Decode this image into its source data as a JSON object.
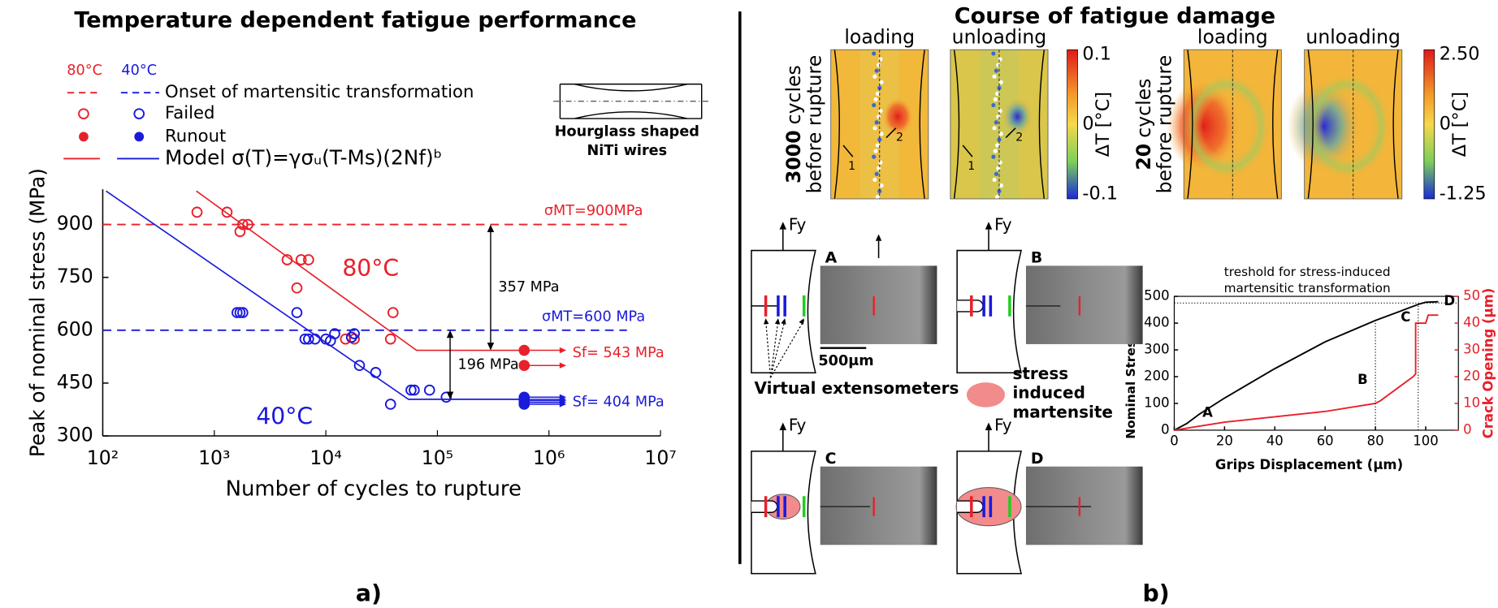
{
  "panel_a": {
    "label": "a)"
  },
  "hourglass_caption": [
    "Hourglass shaped",
    "NiTi wires"
  ],
  "chart_data": [
    {
      "type": "scatter",
      "title": "Temperature dependent fatigue performance",
      "xlabel": "Number of cycles to rupture",
      "ylabel": "Peak of nominal stress (MPa)",
      "xscale": "log",
      "xlim": [
        100,
        10000000
      ],
      "xticks": [
        {
          "value": 100,
          "label": "10²"
        },
        {
          "value": 1000,
          "label": "10³"
        },
        {
          "value": 10000,
          "label": "10⁴"
        },
        {
          "value": 100000,
          "label": "10⁵"
        },
        {
          "value": 1000000,
          "label": "10⁶"
        },
        {
          "value": 10000000,
          "label": "10⁷"
        }
      ],
      "ylim": [
        300,
        1000
      ],
      "yticks": [
        300,
        450,
        600,
        750,
        900
      ],
      "legend": {
        "columns": [
          "80°C",
          "40°C"
        ],
        "rows": [
          "Onset of martensitic transformation",
          "Failed",
          "Runout",
          "Model σ(T)=γσᵤ(T-Ms)(2Nf)ᵇ"
        ]
      },
      "series": [
        {
          "color": "#e8202a",
          "marker": "open",
          "x": [
            700,
            1300,
            1800,
            2000,
            1700,
            4500,
            6000,
            7000,
            5500,
            15000,
            17000,
            18000,
            38000,
            40000
          ],
          "values": [
            935,
            935,
            900,
            900,
            880,
            800,
            800,
            800,
            720,
            575,
            580,
            575,
            575,
            650
          ]
        },
        {
          "color": "#1a1adb",
          "marker": "open",
          "x": [
            1600,
            1700,
            1800,
            5500,
            6500,
            7000,
            8000,
            10000,
            11000,
            12000,
            17000,
            18000,
            20000,
            28000,
            38000,
            58000,
            62000,
            85000,
            120000
          ],
          "values": [
            650,
            650,
            650,
            650,
            575,
            575,
            575,
            575,
            570,
            590,
            580,
            590,
            500,
            480,
            390,
            430,
            430,
            430,
            410
          ]
        },
        {
          "color": "#e8202a",
          "marker": "filled",
          "x": [
            600000,
            600000
          ],
          "values": [
            543,
            500
          ]
        },
        {
          "color": "#1a1adb",
          "marker": "filled",
          "x": [
            600000,
            600000,
            600000,
            600000,
            600000
          ],
          "values": [
            410,
            404,
            400,
            395,
            390
          ]
        },
        {
          "color": "#e8202a",
          "marker": "line",
          "x": [
            690,
            65000,
            600000
          ],
          "values": [
            995,
            543,
            543
          ]
        },
        {
          "color": "#1a1adb",
          "marker": "line",
          "x": [
            107,
            55000,
            600000
          ],
          "values": [
            995,
            404,
            404
          ]
        }
      ],
      "hlines": [
        {
          "value": 900,
          "color": "#e8202a",
          "label": "σMT=900MPa"
        },
        {
          "value": 600,
          "color": "#1a1adb",
          "label": "σMT=600 MPa"
        }
      ],
      "spans": [
        {
          "x": 300000,
          "from": 543,
          "to": 900,
          "label": "357 MPa"
        },
        {
          "x": 130000,
          "from": 404,
          "to": 600,
          "label": "196 MPa"
        }
      ],
      "curve_labels": [
        {
          "text": "80°C",
          "color": "#e8202a"
        },
        {
          "text": "40°C",
          "color": "#1a1adb"
        }
      ],
      "limits": [
        {
          "text": "Sf= 543 MPa",
          "value": 543,
          "color": "#e8202a"
        },
        {
          "text": "Sf=  404 MPa",
          "value": 404,
          "color": "#1a1adb"
        }
      ]
    },
    {
      "type": "line",
      "xlabel": "Grips Displacement  (μm)",
      "ylabel": "Nominal Stress (MPa)",
      "y2label": "Crack Opening (μm)",
      "xlim": [
        0,
        113
      ],
      "xticks": [
        0,
        20,
        40,
        60,
        80,
        100
      ],
      "ylim": [
        0,
        500
      ],
      "yticks": [
        0,
        100,
        200,
        300,
        400,
        500
      ],
      "y2lim": [
        0,
        50
      ],
      "y2ticks": [
        0,
        10,
        20,
        30,
        40,
        50
      ],
      "series": [
        {
          "color": "#000000",
          "x": [
            0,
            5,
            10,
            20,
            40,
            60,
            80,
            90,
            97,
            100,
            105
          ],
          "values": [
            0,
            25,
            60,
            120,
            230,
            330,
            410,
            445,
            470,
            478,
            480
          ]
        },
        {
          "color": "#e8202a",
          "axis": "y2",
          "x": [
            0,
            20,
            40,
            60,
            80,
            82,
            95,
            96,
            96,
            100,
            101,
            105
          ],
          "values": [
            0,
            3,
            5,
            7,
            10,
            11,
            20,
            21,
            40,
            40,
            43,
            43
          ]
        }
      ],
      "threshold": {
        "value": 475,
        "text": [
          "treshold for stress-induced",
          "martensitic transformation"
        ]
      },
      "points": {
        "labels": [
          "A",
          "B",
          "C",
          "D"
        ],
        "x": [
          10,
          80,
          97,
          105
        ]
      }
    }
  ],
  "panel_b": {
    "label": "b)",
    "title": "Course of fatigue damage",
    "thermal_columns": [
      "loading",
      "unloading",
      "loading",
      "unloading"
    ],
    "thermal_rows": [
      {
        "count": "3000",
        "unit": "cycles",
        "line2": "before rupture"
      },
      {
        "count": "20",
        "unit": "cycles",
        "line2": "before rupture"
      }
    ],
    "colorbars": [
      {
        "label": "ΔT [°C]",
        "ticks": [
          "0.1",
          "0",
          "-0.1"
        ]
      },
      {
        "label": "ΔT [°C]",
        "ticks": [
          "2.50",
          "0",
          "-1.25"
        ]
      }
    ],
    "crack_marks": [
      "1",
      "2",
      "1",
      "2"
    ],
    "force": "Fy",
    "steps": [
      "A",
      "B",
      "C",
      "D"
    ],
    "scale_bar": "500μm",
    "extensometers": "Virtual extensometers",
    "martensite": [
      "stress",
      "induced",
      "martensite"
    ]
  }
}
